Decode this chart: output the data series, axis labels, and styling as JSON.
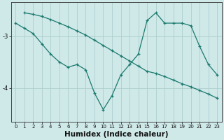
{
  "xlabel": "Humidex (Indice chaleur)",
  "background_color": "#cfe8e8",
  "line_color": "#1a7a6e",
  "grid_color": "#aecece",
  "line1_x": [
    0,
    1,
    2,
    3,
    4,
    5,
    6,
    7,
    8,
    9,
    10,
    11,
    12,
    13,
    14,
    15,
    16,
    17,
    18,
    19,
    20,
    21,
    22,
    23
  ],
  "line1_y": [
    -2.75,
    -2.85,
    -2.95,
    -3.15,
    -3.35,
    -3.5,
    -3.6,
    -3.55,
    -3.65,
    -4.1,
    -4.42,
    -4.15,
    -3.75,
    -3.55,
    -3.35,
    -2.7,
    -2.55,
    -2.75,
    -2.75,
    -2.75,
    -2.8,
    -3.2,
    -3.55,
    -3.75
  ],
  "line2_x": [
    1,
    2,
    3,
    4,
    5,
    6,
    7,
    8,
    9,
    10,
    11,
    12,
    13,
    14,
    15,
    16,
    17,
    18,
    19,
    20,
    21,
    22,
    23
  ],
  "line2_y": [
    -2.55,
    -2.58,
    -2.62,
    -2.68,
    -2.75,
    -2.82,
    -2.9,
    -2.98,
    -3.08,
    -3.18,
    -3.28,
    -3.38,
    -3.48,
    -3.58,
    -3.68,
    -3.72,
    -3.78,
    -3.85,
    -3.92,
    -3.98,
    -4.05,
    -4.12,
    -4.2
  ],
  "ylim": [
    -4.65,
    -2.35
  ],
  "xlim": [
    -0.5,
    23.5
  ],
  "yticks": [
    -4.0,
    -3.0
  ],
  "ytick_labels": [
    "-4",
    "-3"
  ],
  "xticks": [
    0,
    1,
    2,
    3,
    4,
    5,
    6,
    7,
    8,
    9,
    10,
    11,
    12,
    13,
    14,
    15,
    16,
    17,
    18,
    19,
    20,
    21,
    22,
    23
  ],
  "label_fontsize": 7.5,
  "tick_fontsize": 6.0
}
